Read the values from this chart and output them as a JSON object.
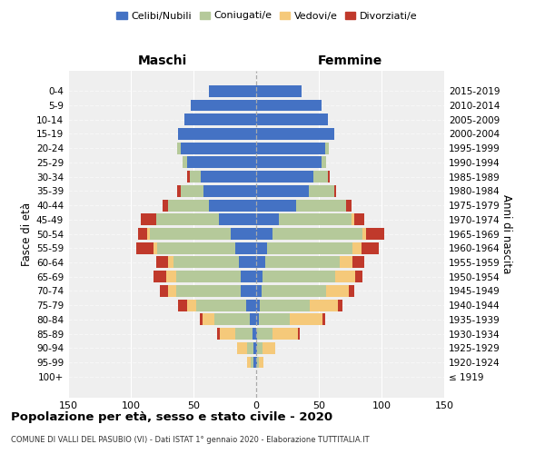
{
  "age_groups": [
    "100+",
    "95-99",
    "90-94",
    "85-89",
    "80-84",
    "75-79",
    "70-74",
    "65-69",
    "60-64",
    "55-59",
    "50-54",
    "45-49",
    "40-44",
    "35-39",
    "30-34",
    "25-29",
    "20-24",
    "15-19",
    "10-14",
    "5-9",
    "0-4"
  ],
  "birth_years": [
    "≤ 1919",
    "1920-1924",
    "1925-1929",
    "1930-1934",
    "1935-1939",
    "1940-1944",
    "1945-1949",
    "1950-1954",
    "1955-1959",
    "1960-1964",
    "1965-1969",
    "1970-1974",
    "1975-1979",
    "1980-1984",
    "1985-1989",
    "1990-1994",
    "1995-1999",
    "2000-2004",
    "2005-2009",
    "2010-2014",
    "2015-2019"
  ],
  "colors": {
    "celibi": "#4472c4",
    "coniugati": "#b5c99a",
    "vedovi": "#f5c97a",
    "divorziati": "#c0392b"
  },
  "maschi": {
    "celibi": [
      0,
      2,
      2,
      3,
      5,
      8,
      12,
      12,
      14,
      17,
      20,
      30,
      38,
      42,
      44,
      55,
      60,
      62,
      57,
      52,
      38
    ],
    "coniugati": [
      0,
      2,
      5,
      14,
      28,
      40,
      52,
      52,
      52,
      62,
      65,
      50,
      32,
      18,
      9,
      4,
      3,
      0,
      0,
      0,
      0
    ],
    "vedovi": [
      0,
      3,
      8,
      12,
      10,
      7,
      6,
      8,
      4,
      3,
      2,
      0,
      0,
      0,
      0,
      0,
      0,
      0,
      0,
      0,
      0
    ],
    "divorziati": [
      0,
      0,
      0,
      2,
      2,
      7,
      7,
      10,
      10,
      14,
      7,
      12,
      5,
      3,
      2,
      0,
      0,
      0,
      0,
      0,
      0
    ]
  },
  "femmine": {
    "nubili": [
      0,
      1,
      1,
      1,
      2,
      3,
      4,
      5,
      7,
      9,
      13,
      18,
      32,
      42,
      46,
      52,
      55,
      62,
      57,
      52,
      36
    ],
    "coniugate": [
      0,
      1,
      4,
      12,
      25,
      40,
      52,
      58,
      60,
      68,
      72,
      58,
      40,
      20,
      11,
      4,
      3,
      0,
      0,
      0,
      0
    ],
    "vedove": [
      0,
      4,
      10,
      20,
      26,
      22,
      18,
      16,
      10,
      7,
      3,
      2,
      0,
      0,
      0,
      0,
      0,
      0,
      0,
      0,
      0
    ],
    "divorziate": [
      0,
      0,
      0,
      2,
      2,
      4,
      4,
      6,
      9,
      14,
      14,
      8,
      4,
      2,
      2,
      0,
      0,
      0,
      0,
      0,
      0
    ]
  },
  "xlim": 150,
  "xticks": [
    -150,
    -100,
    -50,
    0,
    50,
    100,
    150
  ],
  "title": "Popolazione per età, sesso e stato civile - 2020",
  "subtitle": "COMUNE DI VALLI DEL PASUBIO (VI) - Dati ISTAT 1° gennaio 2020 - Elaborazione TUTTITALIA.IT",
  "ylabel_left": "Fasce di età",
  "ylabel_right": "Anni di nascita",
  "label_maschi": "Maschi",
  "label_femmine": "Femmine",
  "legend_labels": [
    "Celibi/Nubili",
    "Coniugati/e",
    "Vedovi/e",
    "Divorziati/e"
  ],
  "bg_color": "#efefef",
  "bar_height": 0.82
}
